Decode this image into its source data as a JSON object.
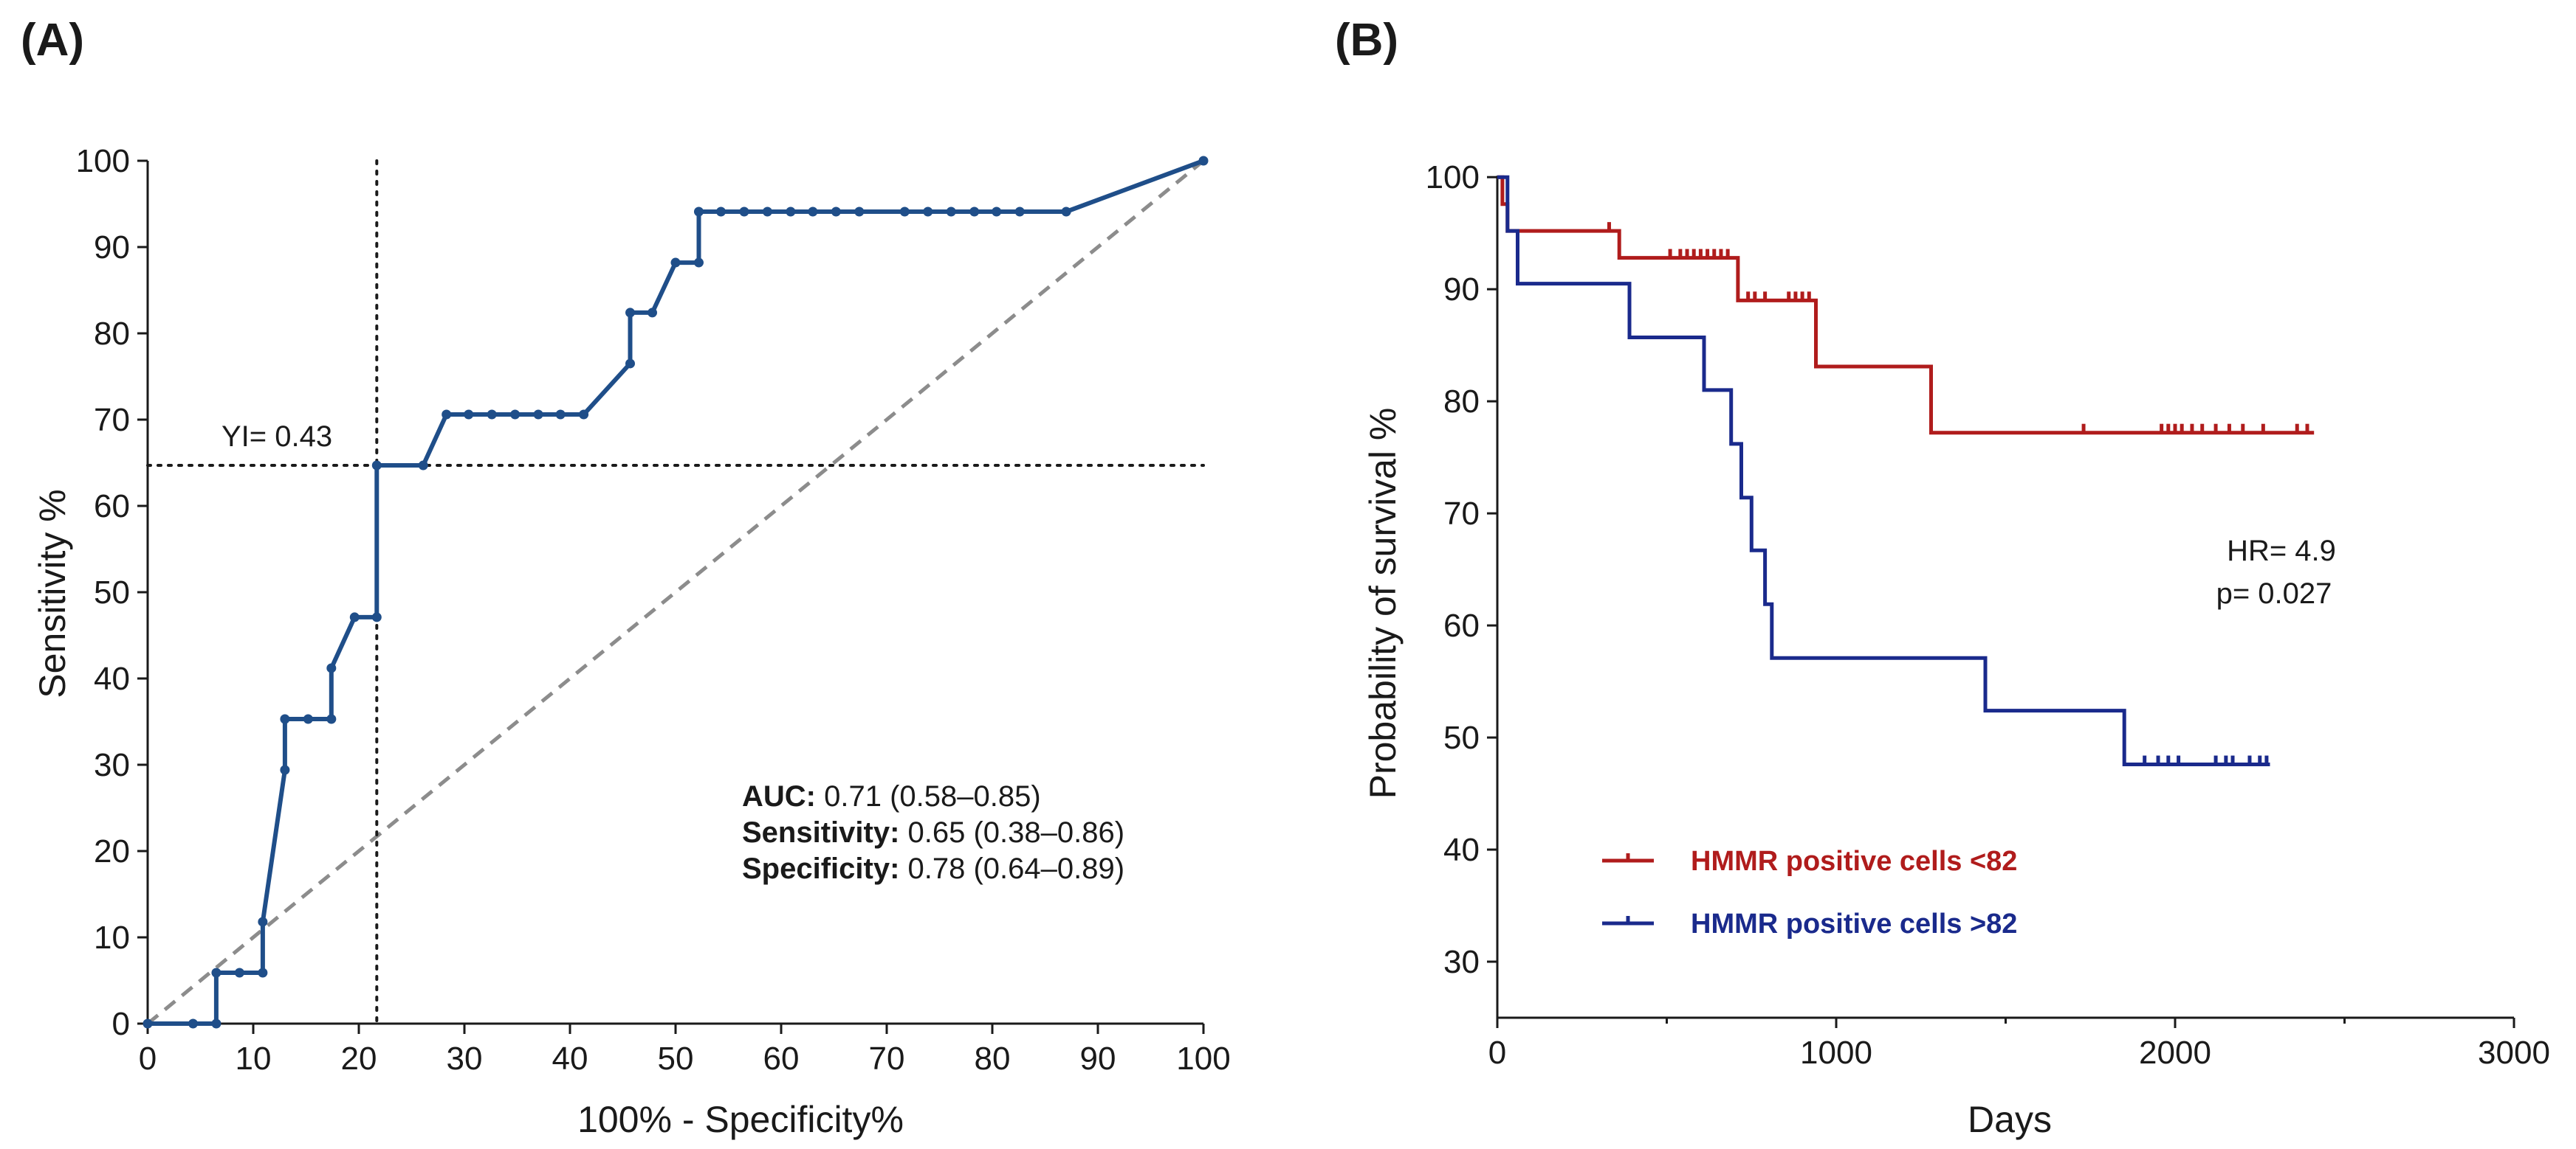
{
  "chart_data": [
    {
      "panel_label": "(A)",
      "type": "line",
      "subtype": "roc",
      "xlabel": "100% - Specificity%",
      "ylabel": "Sensitivity %",
      "xlim": [
        0,
        100
      ],
      "ylim": [
        0,
        100
      ],
      "xticks": [
        0,
        10,
        20,
        30,
        40,
        50,
        60,
        70,
        80,
        90,
        100
      ],
      "yticks": [
        0,
        10,
        20,
        30,
        40,
        50,
        60,
        70,
        80,
        90,
        100
      ],
      "color": "#1f4e89",
      "reference_color": "#8c8c8c",
      "youden_label": "YI= 0.43",
      "youden_x": 21.7,
      "youden_y": 64.7,
      "roc_points": [
        [
          0,
          0
        ],
        [
          4.3,
          0
        ],
        [
          6.5,
          0
        ],
        [
          6.5,
          5.9
        ],
        [
          8.7,
          5.9
        ],
        [
          10.9,
          5.9
        ],
        [
          10.9,
          11.8
        ],
        [
          13.0,
          29.4
        ],
        [
          13.0,
          35.3
        ],
        [
          15.2,
          35.3
        ],
        [
          17.4,
          35.3
        ],
        [
          17.4,
          41.2
        ],
        [
          19.6,
          47.1
        ],
        [
          21.7,
          47.1
        ],
        [
          21.7,
          64.7
        ],
        [
          26.1,
          64.7
        ],
        [
          28.3,
          70.6
        ],
        [
          30.4,
          70.6
        ],
        [
          32.6,
          70.6
        ],
        [
          34.8,
          70.6
        ],
        [
          37.0,
          70.6
        ],
        [
          39.1,
          70.6
        ],
        [
          41.3,
          70.6
        ],
        [
          45.7,
          76.5
        ],
        [
          45.7,
          82.4
        ],
        [
          47.8,
          82.4
        ],
        [
          50.0,
          88.2
        ],
        [
          52.2,
          88.2
        ],
        [
          52.2,
          94.1
        ],
        [
          54.3,
          94.1
        ],
        [
          56.5,
          94.1
        ],
        [
          58.7,
          94.1
        ],
        [
          60.9,
          94.1
        ],
        [
          63.0,
          94.1
        ],
        [
          65.2,
          94.1
        ],
        [
          67.4,
          94.1
        ],
        [
          71.7,
          94.1
        ],
        [
          73.9,
          94.1
        ],
        [
          76.1,
          94.1
        ],
        [
          78.3,
          94.1
        ],
        [
          80.4,
          94.1
        ],
        [
          82.6,
          94.1
        ],
        [
          87.0,
          94.1
        ],
        [
          100,
          100
        ]
      ],
      "stats": [
        {
          "key": "AUC:",
          "value": " 0.71 (0.58–0.85)"
        },
        {
          "key": "Sensitivity:",
          "value": "  0.65 (0.38–0.86)"
        },
        {
          "key": "Specificity:",
          "value": " 0.78 (0.64–0.89)"
        }
      ]
    },
    {
      "panel_label": "(B)",
      "type": "line",
      "subtype": "kaplan-meier",
      "xlabel": "Days",
      "ylabel": "Probability of survival %",
      "xlim": [
        0,
        3000
      ],
      "ylim": [
        25,
        101
      ],
      "xticks": [
        0,
        1000,
        2000,
        3000
      ],
      "xminor": [
        500,
        1500,
        2500
      ],
      "yticks": [
        30,
        40,
        50,
        60,
        70,
        80,
        90,
        100
      ],
      "annotation": [
        "HR= 4.9",
        "p= 0.027"
      ],
      "legend_position": "bottom-left",
      "series": [
        {
          "name": "HMMR positive cells <82",
          "color": "#b01c1c",
          "steps": [
            [
              0,
              100
            ],
            [
              15,
              97.6
            ],
            [
              30,
              95.2
            ],
            [
              360,
              92.8
            ],
            [
              710,
              89.0
            ],
            [
              940,
              83.1
            ],
            [
              1280,
              77.2
            ],
            [
              2410,
              77.2
            ]
          ],
          "censored": [
            [
              330,
              95.2
            ],
            [
              510,
              92.8
            ],
            [
              540,
              92.8
            ],
            [
              560,
              92.8
            ],
            [
              580,
              92.8
            ],
            [
              600,
              92.8
            ],
            [
              620,
              92.8
            ],
            [
              640,
              92.8
            ],
            [
              660,
              92.8
            ],
            [
              680,
              92.8
            ],
            [
              740,
              89.0
            ],
            [
              760,
              89.0
            ],
            [
              790,
              89.0
            ],
            [
              860,
              89.0
            ],
            [
              880,
              89.0
            ],
            [
              900,
              89.0
            ],
            [
              920,
              89.0
            ],
            [
              1730,
              77.2
            ],
            [
              1960,
              77.2
            ],
            [
              1980,
              77.2
            ],
            [
              2000,
              77.2
            ],
            [
              2020,
              77.2
            ],
            [
              2050,
              77.2
            ],
            [
              2080,
              77.2
            ],
            [
              2120,
              77.2
            ],
            [
              2160,
              77.2
            ],
            [
              2200,
              77.2
            ],
            [
              2260,
              77.2
            ],
            [
              2360,
              77.2
            ],
            [
              2390,
              77.2
            ]
          ]
        },
        {
          "name": "HMMR positive cells >82",
          "color": "#1a2a8c",
          "steps": [
            [
              0,
              100
            ],
            [
              30,
              95.2
            ],
            [
              60,
              90.5
            ],
            [
              390,
              85.7
            ],
            [
              610,
              81.0
            ],
            [
              690,
              76.2
            ],
            [
              720,
              71.4
            ],
            [
              750,
              66.7
            ],
            [
              790,
              61.9
            ],
            [
              810,
              57.1
            ],
            [
              1440,
              52.4
            ],
            [
              1850,
              47.6
            ],
            [
              2280,
              47.6
            ]
          ],
          "censored": [
            [
              1910,
              47.6
            ],
            [
              1950,
              47.6
            ],
            [
              1980,
              47.6
            ],
            [
              2010,
              47.6
            ],
            [
              2120,
              47.6
            ],
            [
              2150,
              47.6
            ],
            [
              2170,
              47.6
            ],
            [
              2220,
              47.6
            ],
            [
              2250,
              47.6
            ],
            [
              2270,
              47.6
            ]
          ]
        }
      ]
    }
  ]
}
